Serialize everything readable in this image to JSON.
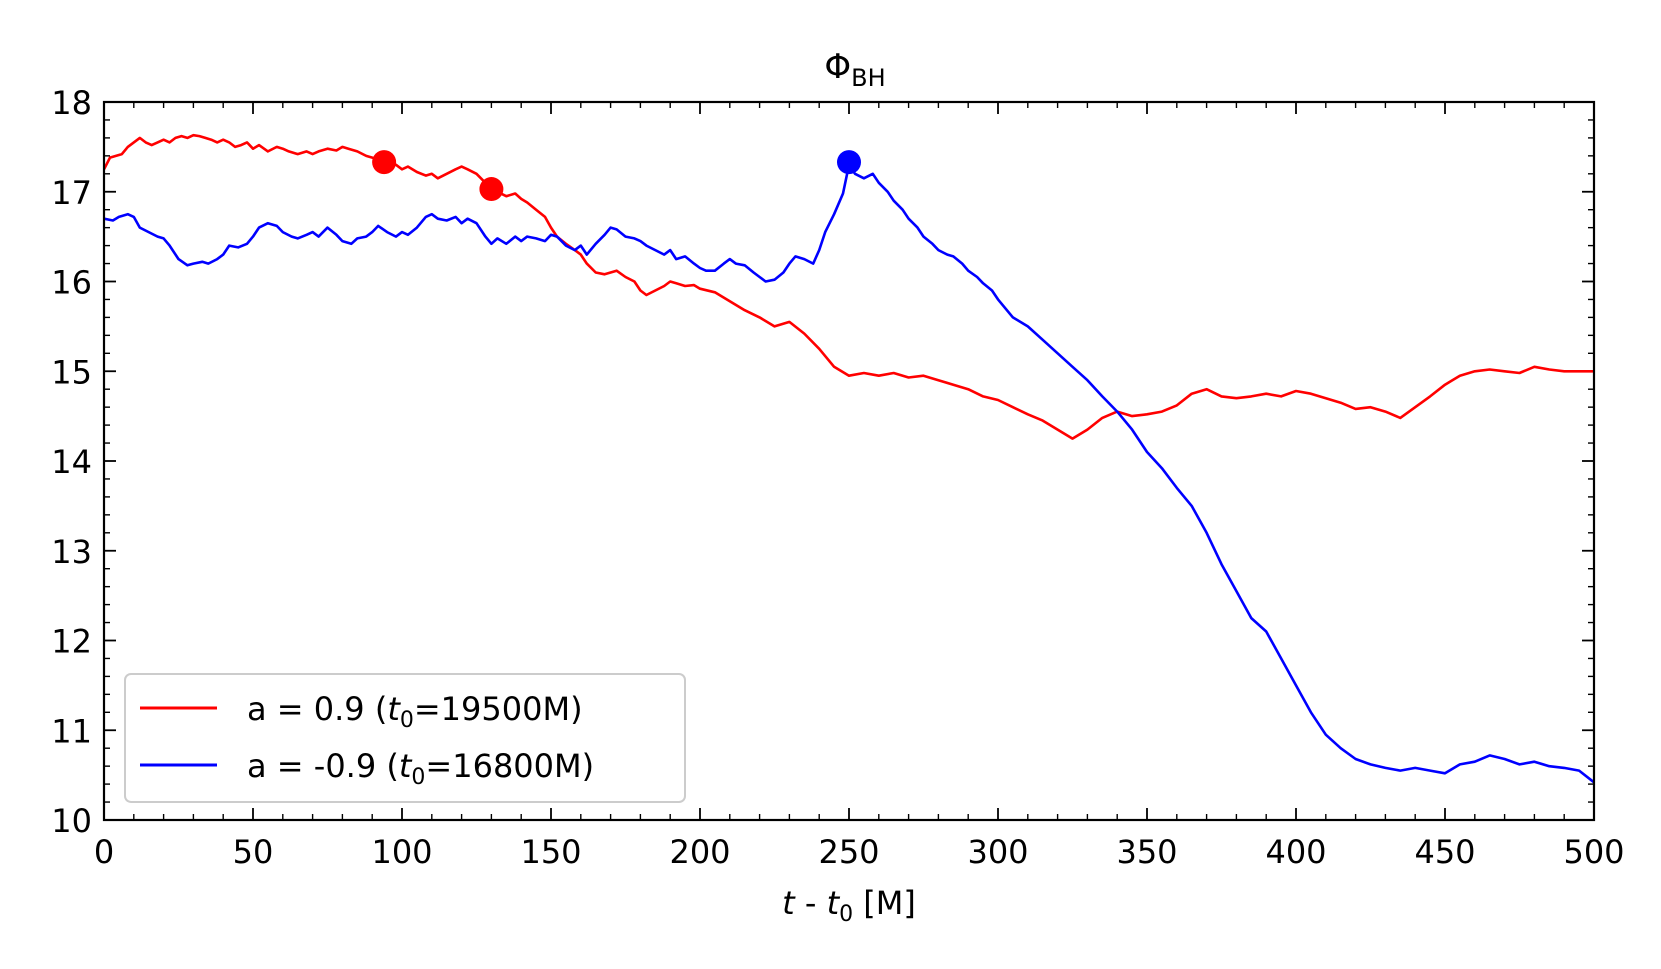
{
  "chart_data": {
    "type": "line",
    "title_main": "Φ",
    "title_sub": "BH",
    "xlabel_italic_t": "t",
    "xlabel_mid": " - ",
    "xlabel_italic_t0": "t",
    "xlabel_sub0": "0",
    "xlabel_units": " [M]",
    "xlim": [
      0,
      500
    ],
    "ylim": [
      10,
      18
    ],
    "xticks": [
      0,
      50,
      100,
      150,
      200,
      250,
      300,
      350,
      400,
      450,
      500
    ],
    "yticks": [
      10,
      11,
      12,
      13,
      14,
      15,
      16,
      17,
      18
    ],
    "legend_position": "lower-left",
    "series": [
      {
        "name": "a = 0.9",
        "label_prefix": "a = 0.9 (",
        "label_t": "t",
        "label_sub": "0",
        "label_suffix": "=19500M)",
        "color": "#ff0000",
        "x": [
          0,
          2,
          4,
          6,
          8,
          10,
          12,
          14,
          16,
          18,
          20,
          22,
          24,
          26,
          28,
          30,
          32,
          34,
          36,
          38,
          40,
          42,
          44,
          46,
          48,
          50,
          52,
          55,
          58,
          60,
          62,
          65,
          68,
          70,
          72,
          75,
          78,
          80,
          82,
          85,
          88,
          90,
          93,
          95,
          98,
          100,
          102,
          105,
          108,
          110,
          112,
          115,
          118,
          120,
          122,
          125,
          128,
          130,
          132,
          135,
          138,
          140,
          142,
          145,
          148,
          150,
          152,
          155,
          158,
          160,
          162,
          165,
          168,
          170,
          172,
          175,
          178,
          180,
          182,
          185,
          188,
          190,
          192,
          195,
          198,
          200,
          205,
          210,
          215,
          220,
          225,
          230,
          235,
          240,
          245,
          250,
          255,
          260,
          265,
          270,
          275,
          280,
          285,
          290,
          295,
          300,
          305,
          310,
          315,
          320,
          325,
          330,
          335,
          340,
          345,
          350,
          355,
          360,
          365,
          370,
          375,
          380,
          385,
          390,
          395,
          400,
          405,
          410,
          415,
          420,
          425,
          430,
          435,
          440,
          445,
          450,
          455,
          460,
          465,
          470,
          475,
          480,
          485,
          490,
          495,
          500
        ],
        "y": [
          17.25,
          17.38,
          17.4,
          17.42,
          17.5,
          17.55,
          17.6,
          17.55,
          17.52,
          17.55,
          17.58,
          17.55,
          17.6,
          17.62,
          17.6,
          17.63,
          17.62,
          17.6,
          17.58,
          17.55,
          17.58,
          17.55,
          17.5,
          17.52,
          17.55,
          17.48,
          17.52,
          17.45,
          17.5,
          17.48,
          17.45,
          17.42,
          17.45,
          17.42,
          17.45,
          17.48,
          17.46,
          17.5,
          17.48,
          17.45,
          17.4,
          17.38,
          17.35,
          17.33,
          17.3,
          17.25,
          17.28,
          17.22,
          17.18,
          17.2,
          17.15,
          17.2,
          17.25,
          17.28,
          17.25,
          17.2,
          17.1,
          17.05,
          17.0,
          16.95,
          16.98,
          16.92,
          16.88,
          16.8,
          16.72,
          16.6,
          16.5,
          16.42,
          16.35,
          16.3,
          16.2,
          16.1,
          16.08,
          16.1,
          16.12,
          16.05,
          16.0,
          15.9,
          15.85,
          15.9,
          15.95,
          16.0,
          15.98,
          15.95,
          15.96,
          15.92,
          15.88,
          15.78,
          15.68,
          15.6,
          15.5,
          15.55,
          15.42,
          15.25,
          15.05,
          14.95,
          14.98,
          14.95,
          14.98,
          14.93,
          14.95,
          14.9,
          14.85,
          14.8,
          14.72,
          14.68,
          14.6,
          14.52,
          14.45,
          14.35,
          14.25,
          14.35,
          14.48,
          14.55,
          14.5,
          14.52,
          14.55,
          14.62,
          14.75,
          14.8,
          14.72,
          14.7,
          14.72,
          14.75,
          14.72,
          14.78,
          14.75,
          14.7,
          14.65,
          14.58,
          14.6,
          14.55,
          14.48,
          14.6,
          14.72,
          14.85,
          14.95,
          15.0,
          15.02,
          15.0,
          14.98,
          15.05,
          15.02,
          15.0,
          15.0,
          15.0
        ],
        "markers": [
          {
            "x": 94,
            "y": 17.33
          },
          {
            "x": 130,
            "y": 17.03
          }
        ]
      },
      {
        "name": "a = -0.9",
        "label_prefix": "a = -0.9 (",
        "label_t": "t",
        "label_sub": "0",
        "label_suffix": "=16800M)",
        "color": "#0000ff",
        "x": [
          0,
          3,
          5,
          8,
          10,
          12,
          15,
          18,
          20,
          22,
          25,
          28,
          30,
          33,
          35,
          38,
          40,
          42,
          45,
          48,
          50,
          52,
          55,
          58,
          60,
          63,
          65,
          68,
          70,
          72,
          75,
          78,
          80,
          83,
          85,
          88,
          90,
          92,
          95,
          98,
          100,
          102,
          105,
          108,
          110,
          112,
          115,
          118,
          120,
          122,
          125,
          128,
          130,
          132,
          135,
          138,
          140,
          142,
          145,
          148,
          150,
          152,
          155,
          158,
          160,
          162,
          165,
          168,
          170,
          172,
          175,
          178,
          180,
          182,
          185,
          188,
          190,
          192,
          195,
          198,
          200,
          202,
          205,
          208,
          210,
          212,
          215,
          218,
          220,
          222,
          225,
          228,
          230,
          232,
          235,
          238,
          240,
          242,
          245,
          248,
          250,
          252,
          255,
          258,
          260,
          263,
          265,
          268,
          270,
          273,
          275,
          278,
          280,
          283,
          285,
          288,
          290,
          293,
          295,
          298,
          300,
          305,
          310,
          315,
          320,
          325,
          330,
          335,
          340,
          345,
          350,
          355,
          360,
          365,
          370,
          375,
          380,
          385,
          390,
          395,
          400,
          405,
          410,
          415,
          420,
          425,
          430,
          435,
          440,
          445,
          450,
          455,
          460,
          465,
          470,
          475,
          480,
          485,
          490,
          495,
          500
        ],
        "y": [
          16.7,
          16.68,
          16.72,
          16.75,
          16.72,
          16.6,
          16.55,
          16.5,
          16.48,
          16.4,
          16.25,
          16.18,
          16.2,
          16.22,
          16.2,
          16.25,
          16.3,
          16.4,
          16.38,
          16.42,
          16.5,
          16.6,
          16.65,
          16.62,
          16.55,
          16.5,
          16.48,
          16.52,
          16.55,
          16.5,
          16.6,
          16.52,
          16.45,
          16.42,
          16.48,
          16.5,
          16.55,
          16.62,
          16.55,
          16.5,
          16.55,
          16.52,
          16.6,
          16.72,
          16.75,
          16.7,
          16.68,
          16.72,
          16.65,
          16.7,
          16.65,
          16.5,
          16.42,
          16.48,
          16.42,
          16.5,
          16.45,
          16.5,
          16.48,
          16.45,
          16.52,
          16.5,
          16.4,
          16.35,
          16.4,
          16.3,
          16.42,
          16.52,
          16.6,
          16.58,
          16.5,
          16.48,
          16.45,
          16.4,
          16.35,
          16.3,
          16.35,
          16.25,
          16.28,
          16.2,
          16.15,
          16.12,
          16.12,
          16.2,
          16.25,
          16.2,
          16.18,
          16.1,
          16.05,
          16.0,
          16.02,
          16.1,
          16.2,
          16.28,
          16.25,
          16.2,
          16.35,
          16.55,
          16.75,
          16.98,
          17.3,
          17.2,
          17.15,
          17.2,
          17.1,
          17.0,
          16.9,
          16.8,
          16.7,
          16.6,
          16.5,
          16.42,
          16.35,
          16.3,
          16.28,
          16.2,
          16.12,
          16.05,
          15.98,
          15.9,
          15.8,
          15.6,
          15.5,
          15.35,
          15.2,
          15.05,
          14.9,
          14.72,
          14.55,
          14.35,
          14.1,
          13.92,
          13.7,
          13.5,
          13.2,
          12.85,
          12.55,
          12.25,
          12.1,
          11.8,
          11.5,
          11.2,
          10.95,
          10.8,
          10.68,
          10.62,
          10.58,
          10.55,
          10.58,
          10.55,
          10.52,
          10.62,
          10.65,
          10.72,
          10.68,
          10.62,
          10.65,
          10.6,
          10.58,
          10.55,
          10.42
        ],
        "markers": [
          {
            "x": 250,
            "y": 17.33
          }
        ]
      }
    ]
  }
}
